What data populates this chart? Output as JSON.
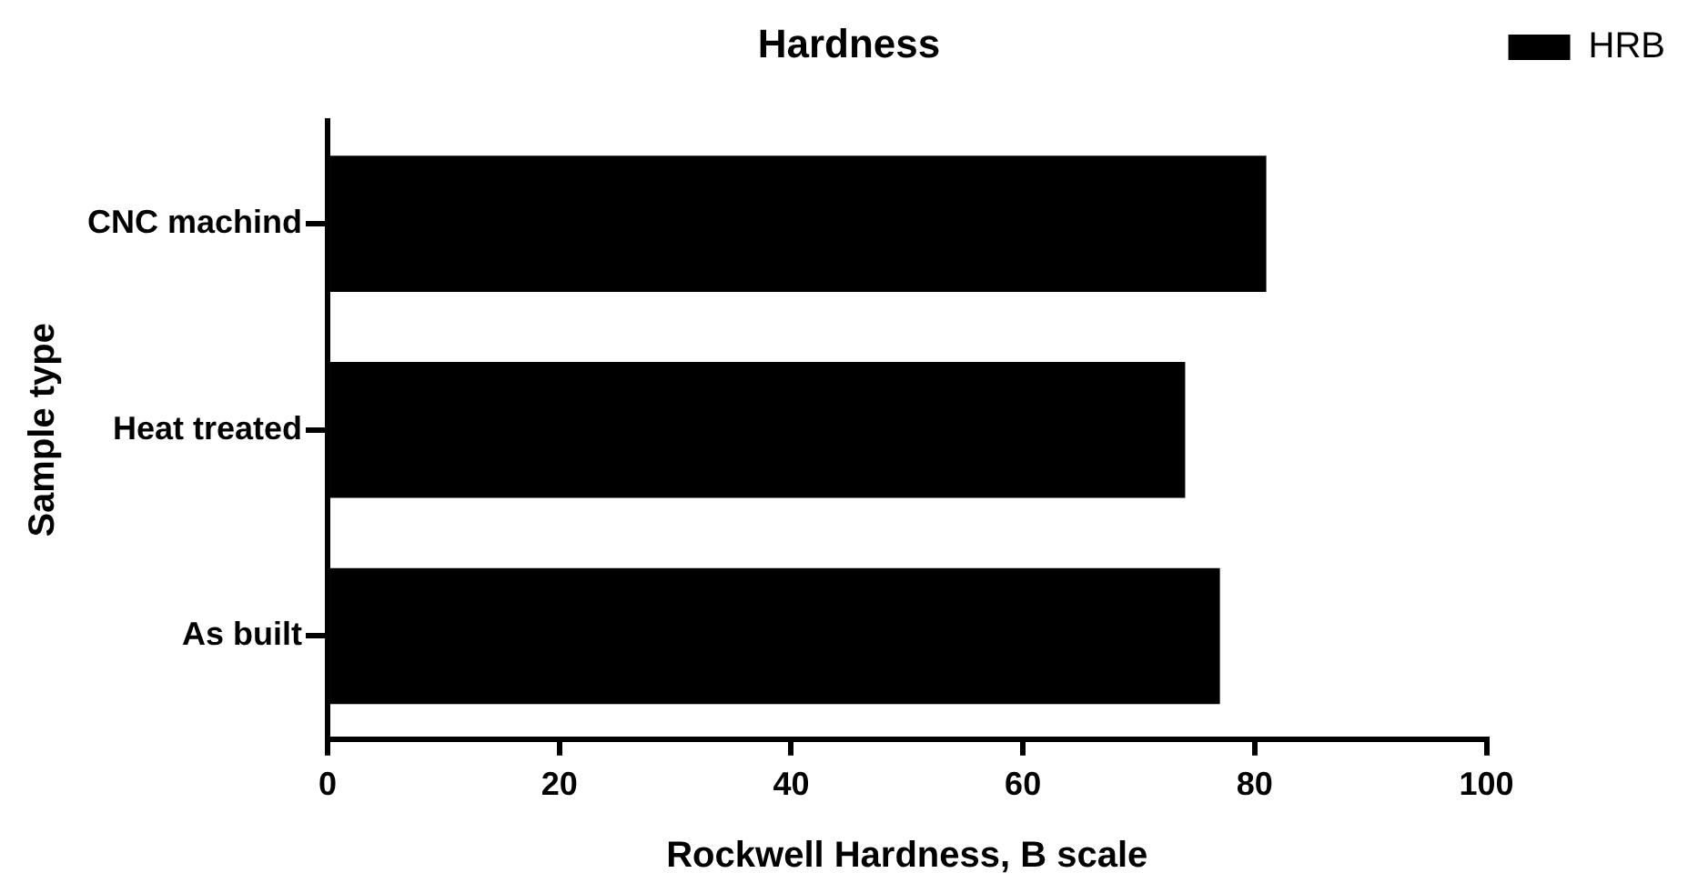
{
  "chart_data": {
    "type": "bar",
    "orientation": "horizontal",
    "title": "Hardness",
    "xlabel": "Rockwell Hardness, B scale",
    "ylabel": "Sample type",
    "categories": [
      "CNC machind",
      "Heat treated",
      "As built"
    ],
    "series": [
      {
        "name": "HRB",
        "color": "#000000",
        "values": [
          81,
          74,
          77
        ]
      }
    ],
    "xlim": [
      0,
      100
    ],
    "xticks": [
      0,
      20,
      40,
      60,
      80,
      100
    ],
    "grid": false,
    "legend": "top right"
  }
}
